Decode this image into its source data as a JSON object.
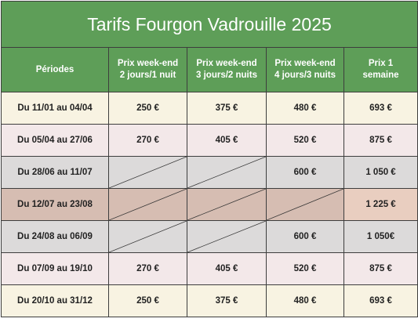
{
  "title": "Tarifs Fourgon Vadrouille 2025",
  "headers": [
    [
      "Périodes"
    ],
    [
      "Prix week-end",
      "2 jours/1 nuit"
    ],
    [
      "Prix week-end",
      "3 jours/2 nuits"
    ],
    [
      "Prix week-end",
      "4 jours/3 nuits"
    ],
    [
      "Prix 1",
      "semaine"
    ]
  ],
  "rows": [
    {
      "period": "Du 11/01 au 04/04",
      "w2": "250 €",
      "w3": "375 €",
      "w4": "480 €",
      "week": "693 €"
    },
    {
      "period": "Du 05/04 au 27/06",
      "w2": "270 €",
      "w3": "405 €",
      "w4": "520 €",
      "week": "875 €"
    },
    {
      "period": "Du 28/06 au 11/07",
      "w2": "",
      "w3": "",
      "w4": "600 €",
      "week": "1 050 €"
    },
    {
      "period": "Du 12/07 au 23/08",
      "w2": "",
      "w3": "",
      "w4": "",
      "week": "1 225 €"
    },
    {
      "period": "Du 24/08 au 06/09",
      "w2": "",
      "w3": "",
      "w4": "600 €",
      "week": "1 050€"
    },
    {
      "period": "Du 07/09 au 19/10",
      "w2": "270 €",
      "w3": "405 €",
      "w4": "520 €",
      "week": "875 €"
    },
    {
      "period": "Du 20/10 au 31/12",
      "w2": "250 €",
      "w3": "375 €",
      "w4": "480 €",
      "week": "693 €"
    }
  ],
  "colors": {
    "header_green": "#5e9e58",
    "row_cream": "#f8f3e2",
    "row_pink": "#f3e8e9",
    "row_grey": "#dcdada",
    "row_tan": "#d6bdb2"
  }
}
